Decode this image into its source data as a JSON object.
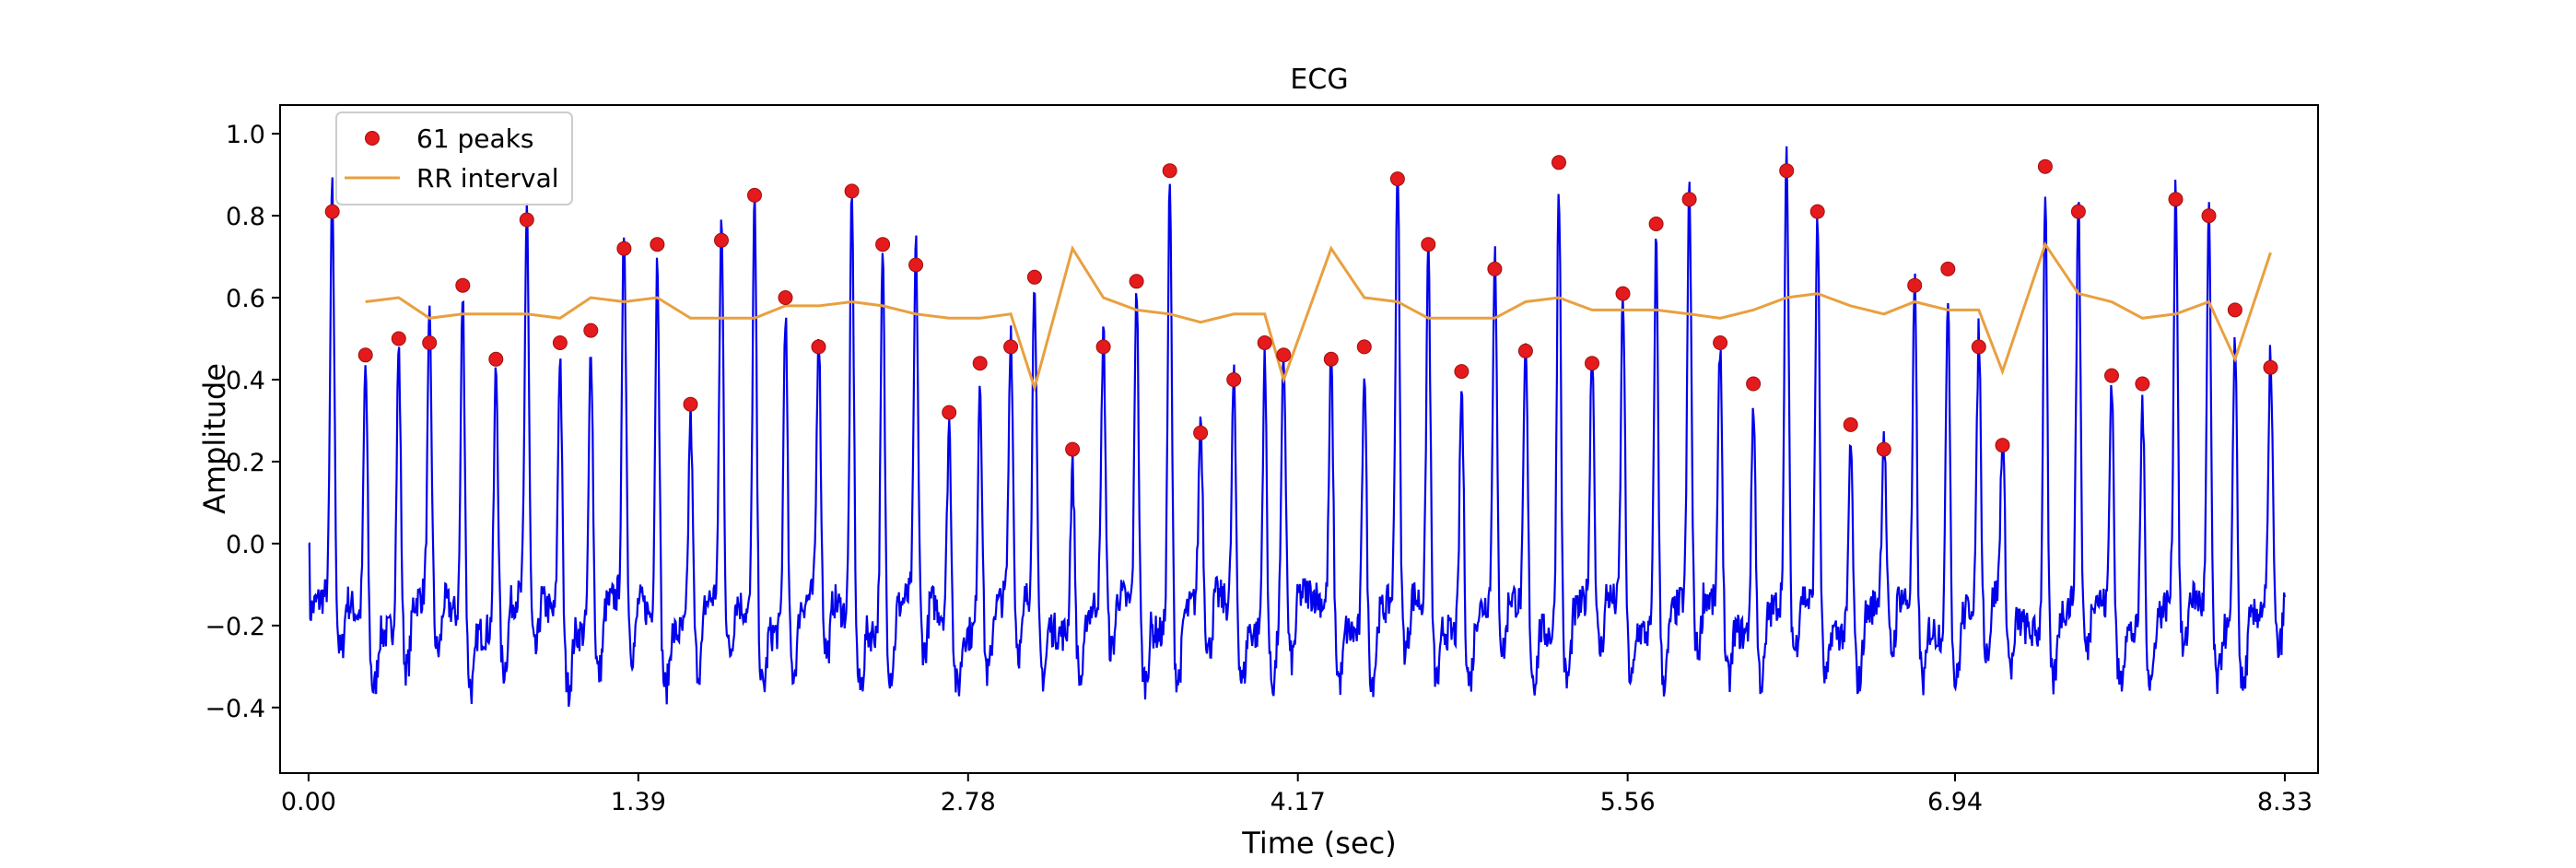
{
  "chart_data": {
    "type": "line",
    "title": "ECG",
    "xlabel": "Time (sec)",
    "ylabel": "Amplitude",
    "xlim": [
      -0.12,
      8.47
    ],
    "ylim": [
      -0.56,
      1.07
    ],
    "x_ticks": [
      0.0,
      1.39,
      2.78,
      4.17,
      5.56,
      6.94,
      8.33
    ],
    "x_tick_labels": [
      "0.00",
      "1.39",
      "2.78",
      "4.17",
      "5.56",
      "6.94",
      "8.33"
    ],
    "y_ticks": [
      -0.4,
      -0.2,
      0.0,
      0.2,
      0.4,
      0.6,
      0.8,
      1.0
    ],
    "y_tick_labels": [
      "−0.4",
      "−0.2",
      "0.0",
      "0.2",
      "0.4",
      "0.6",
      "0.8",
      "1.0"
    ],
    "grid": false,
    "legend_position": "top-left",
    "series": [
      {
        "name": "ECG signal",
        "color": "#0000ee",
        "baseline": -0.17,
        "spike_width_sec": 0.018
      },
      {
        "name": "61 peaks",
        "type": "scatter",
        "color": "#e41a1c",
        "marker": "circle",
        "points": [
          [
            0.1,
            0.81
          ],
          [
            0.24,
            0.46
          ],
          [
            0.38,
            0.5
          ],
          [
            0.51,
            0.49
          ],
          [
            0.65,
            0.63
          ],
          [
            0.79,
            0.45
          ],
          [
            0.92,
            0.79
          ],
          [
            1.06,
            0.49
          ],
          [
            1.19,
            0.52
          ],
          [
            1.33,
            0.72
          ],
          [
            1.47,
            0.73
          ],
          [
            1.61,
            0.34
          ],
          [
            1.74,
            0.74
          ],
          [
            1.88,
            0.85
          ],
          [
            2.01,
            0.6
          ],
          [
            2.15,
            0.48
          ],
          [
            2.29,
            0.86
          ],
          [
            2.42,
            0.73
          ],
          [
            2.56,
            0.68
          ],
          [
            2.7,
            0.32
          ],
          [
            2.83,
            0.44
          ],
          [
            2.96,
            0.48
          ],
          [
            3.06,
            0.65
          ],
          [
            3.22,
            0.23
          ],
          [
            3.35,
            0.48
          ],
          [
            3.49,
            0.64
          ],
          [
            3.63,
            0.91
          ],
          [
            3.76,
            0.27
          ],
          [
            3.9,
            0.4
          ],
          [
            4.03,
            0.49
          ],
          [
            4.11,
            0.46
          ],
          [
            4.31,
            0.45
          ],
          [
            4.45,
            0.48
          ],
          [
            4.59,
            0.89
          ],
          [
            4.72,
            0.73
          ],
          [
            4.86,
            0.42
          ],
          [
            5.0,
            0.67
          ],
          [
            5.13,
            0.47
          ],
          [
            5.27,
            0.93
          ],
          [
            5.41,
            0.44
          ],
          [
            5.54,
            0.61
          ],
          [
            5.68,
            0.78
          ],
          [
            5.82,
            0.84
          ],
          [
            5.95,
            0.49
          ],
          [
            6.09,
            0.39
          ],
          [
            6.23,
            0.91
          ],
          [
            6.36,
            0.81
          ],
          [
            6.5,
            0.29
          ],
          [
            6.64,
            0.23
          ],
          [
            6.77,
            0.63
          ],
          [
            6.91,
            0.67
          ],
          [
            7.04,
            0.48
          ],
          [
            7.14,
            0.24
          ],
          [
            7.32,
            0.92
          ],
          [
            7.46,
            0.81
          ],
          [
            7.6,
            0.41
          ],
          [
            7.73,
            0.39
          ],
          [
            7.87,
            0.84
          ],
          [
            8.01,
            0.8
          ],
          [
            8.12,
            0.57
          ],
          [
            8.27,
            0.43
          ]
        ]
      },
      {
        "name": "RR interval",
        "color": "#e8a040",
        "points": [
          [
            0.24,
            0.59
          ],
          [
            0.38,
            0.6
          ],
          [
            0.51,
            0.55
          ],
          [
            0.65,
            0.56
          ],
          [
            0.79,
            0.56
          ],
          [
            0.92,
            0.56
          ],
          [
            1.06,
            0.55
          ],
          [
            1.19,
            0.6
          ],
          [
            1.33,
            0.59
          ],
          [
            1.47,
            0.6
          ],
          [
            1.61,
            0.55
          ],
          [
            1.74,
            0.55
          ],
          [
            1.88,
            0.55
          ],
          [
            2.01,
            0.58
          ],
          [
            2.15,
            0.58
          ],
          [
            2.29,
            0.59
          ],
          [
            2.42,
            0.58
          ],
          [
            2.56,
            0.56
          ],
          [
            2.7,
            0.55
          ],
          [
            2.83,
            0.55
          ],
          [
            2.96,
            0.56
          ],
          [
            3.06,
            0.38
          ],
          [
            3.22,
            0.72
          ],
          [
            3.35,
            0.6
          ],
          [
            3.49,
            0.57
          ],
          [
            3.63,
            0.56
          ],
          [
            3.76,
            0.54
          ],
          [
            3.9,
            0.56
          ],
          [
            4.03,
            0.56
          ],
          [
            4.11,
            0.4
          ],
          [
            4.31,
            0.72
          ],
          [
            4.45,
            0.6
          ],
          [
            4.59,
            0.59
          ],
          [
            4.72,
            0.55
          ],
          [
            4.86,
            0.55
          ],
          [
            5.0,
            0.55
          ],
          [
            5.13,
            0.59
          ],
          [
            5.27,
            0.6
          ],
          [
            5.41,
            0.57
          ],
          [
            5.54,
            0.57
          ],
          [
            5.68,
            0.57
          ],
          [
            5.82,
            0.56
          ],
          [
            5.95,
            0.55
          ],
          [
            6.09,
            0.57
          ],
          [
            6.23,
            0.6
          ],
          [
            6.36,
            0.61
          ],
          [
            6.5,
            0.58
          ],
          [
            6.64,
            0.56
          ],
          [
            6.77,
            0.59
          ],
          [
            6.91,
            0.57
          ],
          [
            7.04,
            0.57
          ],
          [
            7.14,
            0.42
          ],
          [
            7.32,
            0.73
          ],
          [
            7.46,
            0.61
          ],
          [
            7.6,
            0.59
          ],
          [
            7.73,
            0.55
          ],
          [
            7.87,
            0.56
          ],
          [
            8.01,
            0.59
          ],
          [
            8.12,
            0.45
          ],
          [
            8.27,
            0.71
          ]
        ]
      }
    ]
  }
}
